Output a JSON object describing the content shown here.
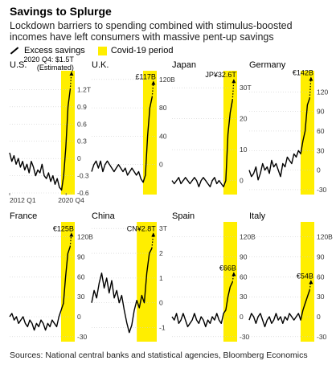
{
  "title": "Savings to Splurge",
  "subtitle": "Lockdown barriers to spending combined with stimulus-boosted incomes have left consumers with massive pent-up savings",
  "legend": {
    "line": "Excess savings",
    "box": "Covid-19 period"
  },
  "footer": "Sources: National central banks and statistical agencies, Bloomberg Economics",
  "colors": {
    "covid": "#ffee00",
    "line": "#000000",
    "grid": "#cfcfcf"
  },
  "chart_data": [
    {
      "type": "line",
      "name": "U.S.",
      "axis_side": "right",
      "ylim": [
        -0.6,
        1.5
      ],
      "yticks": [
        "1.2T",
        "0.9",
        "0.6",
        "0.3",
        "0",
        "-0.3",
        "-0.6"
      ],
      "yticks_values": [
        1.2,
        0.9,
        0.6,
        0.3,
        0,
        -0.3,
        -0.6
      ],
      "xticks": [
        "2012 Q1",
        "2020 Q4"
      ],
      "xticks_pos": [
        0.0,
        0.9
      ],
      "covid_start": 0.82,
      "annotation": "2020 Q4: $1.5T\n(Estimated)",
      "values": [
        0.1,
        -0.05,
        0.05,
        -0.1,
        0.0,
        -0.15,
        -0.05,
        -0.2,
        -0.1,
        -0.25,
        -0.05,
        -0.15,
        -0.3,
        -0.2,
        -0.25,
        -0.1,
        -0.3,
        -0.35,
        -0.25,
        -0.4,
        -0.3,
        -0.45,
        -0.35,
        -0.5,
        -0.55,
        -0.3,
        0.2,
        0.9,
        1.2
      ],
      "projection": [
        1.2,
        1.5
      ]
    },
    {
      "type": "line",
      "name": "U.K.",
      "axis_side": "right",
      "ylim": [
        -40,
        130
      ],
      "yticks": [
        "120B",
        "80",
        "40",
        "0"
      ],
      "yticks_values": [
        120,
        80,
        40,
        0
      ],
      "covid_start": 0.82,
      "annotation": "£117B",
      "values": [
        -10,
        0,
        5,
        -5,
        5,
        -10,
        0,
        5,
        0,
        -5,
        -10,
        -5,
        0,
        -5,
        -10,
        -5,
        -15,
        -10,
        -5,
        -10,
        -15,
        -10,
        -20,
        -25,
        -15,
        40,
        80,
        95
      ],
      "projection": [
        95,
        117
      ]
    },
    {
      "type": "line",
      "name": "Japan",
      "axis_side": "right",
      "ylim": [
        -4,
        35
      ],
      "yticks": [
        "30T",
        "20",
        "10",
        "0"
      ],
      "yticks_values": [
        30,
        20,
        10,
        0
      ],
      "covid_start": 0.82,
      "annotation": "JP¥32.6T",
      "values": [
        0,
        -1,
        0,
        1,
        -1,
        0,
        1,
        0,
        -1,
        0,
        1,
        0,
        -2,
        0,
        1,
        0,
        -1,
        -2,
        0,
        1,
        -1,
        0,
        -1,
        -2,
        0,
        15,
        22,
        26
      ],
      "projection": [
        26,
        32.6
      ]
    },
    {
      "type": "line",
      "name": "Germany",
      "axis_side": "right",
      "ylim": [
        -35,
        150
      ],
      "yticks": [
        "120",
        "90",
        "60",
        "30",
        "0",
        "-30"
      ],
      "yticks_values": [
        120,
        90,
        60,
        30,
        0,
        -30
      ],
      "covid_start": 0.82,
      "annotation": "€142B",
      "values": [
        0,
        -10,
        -5,
        5,
        -15,
        -5,
        10,
        0,
        5,
        -5,
        15,
        5,
        10,
        0,
        -10,
        10,
        5,
        20,
        15,
        10,
        25,
        20,
        30,
        25,
        45,
        60,
        100,
        110
      ],
      "projection": [
        110,
        142
      ]
    },
    {
      "type": "line",
      "name": "France",
      "axis_side": "right",
      "ylim": [
        -35,
        140
      ],
      "yticks": [
        "120B",
        "90",
        "60",
        "30",
        "0",
        "-30"
      ],
      "yticks_values": [
        120,
        90,
        60,
        30,
        0,
        -30
      ],
      "covid_start": 0.82,
      "annotation": "€125B",
      "values": [
        0,
        5,
        -5,
        0,
        -10,
        -5,
        0,
        -10,
        -15,
        -5,
        -10,
        -20,
        -10,
        -15,
        -5,
        -10,
        -20,
        -10,
        -15,
        -5,
        -10,
        -15,
        0,
        10,
        20,
        60,
        95,
        105
      ],
      "projection": [
        105,
        125
      ]
    },
    {
      "type": "line",
      "name": "China",
      "axis_side": "right",
      "ylim": [
        -1.5,
        3.2
      ],
      "yticks": [
        "3T",
        "2",
        "1",
        "0",
        "-1"
      ],
      "yticks_values": [
        3,
        2,
        1,
        0,
        -1
      ],
      "covid_start": 0.72,
      "annotation": "CN¥2.8T",
      "values": [
        0,
        0.5,
        0.2,
        0.8,
        1.2,
        0.6,
        1.0,
        0.4,
        0.9,
        0.2,
        0.5,
        0.0,
        0.3,
        -0.3,
        -0.8,
        -1.2,
        -0.9,
        -0.3,
        0.1,
        -0.2,
        0.3,
        0.0,
        1.2,
        2.0,
        2.2
      ],
      "projection": [
        2.2,
        2.8
      ]
    },
    {
      "type": "line",
      "name": "Spain",
      "axis_side": "right",
      "ylim": [
        -35,
        140
      ],
      "yticks": [
        "120B",
        "90",
        "60",
        "30",
        "0",
        "-30"
      ],
      "yticks_values": [
        120,
        90,
        60,
        30,
        0,
        -30
      ],
      "covid_start": 0.82,
      "annotation": "€66B",
      "values": [
        0,
        -5,
        5,
        -10,
        -5,
        5,
        -5,
        -15,
        -10,
        -5,
        5,
        -5,
        -10,
        0,
        -5,
        -15,
        -5,
        -10,
        0,
        -5,
        5,
        -5,
        -10,
        5,
        10,
        30,
        45,
        52
      ],
      "projection": [
        52,
        66
      ]
    },
    {
      "type": "line",
      "name": "Italy",
      "axis_side": "right",
      "ylim": [
        -35,
        140
      ],
      "yticks": [
        "120B",
        "90",
        "60",
        "30",
        "0",
        "-30"
      ],
      "yticks_values": [
        120,
        90,
        60,
        30,
        0,
        -30
      ],
      "covid_start": 0.82,
      "annotation": "€54B",
      "values": [
        -5,
        5,
        0,
        -10,
        0,
        5,
        -5,
        -15,
        -5,
        0,
        -10,
        -5,
        5,
        -5,
        0,
        -10,
        0,
        -5,
        5,
        0,
        -5,
        0,
        5,
        -5,
        10,
        20,
        30,
        40
      ],
      "projection": [
        40,
        54
      ]
    }
  ]
}
